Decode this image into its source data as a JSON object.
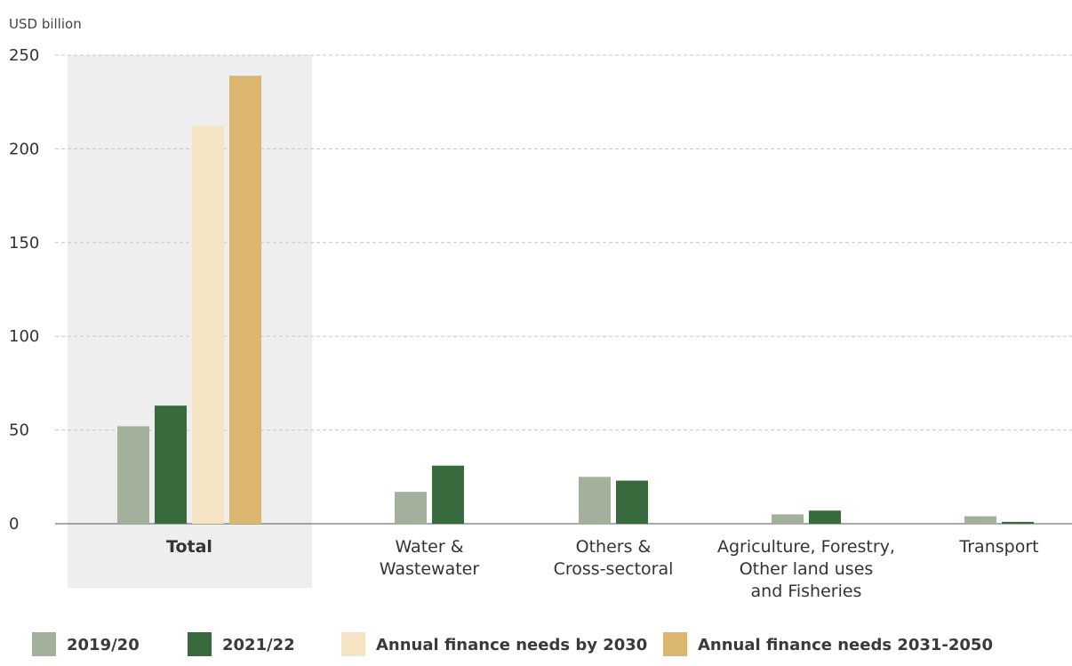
{
  "chart_data": {
    "type": "bar",
    "ylabel": "USD billion",
    "ylim": [
      0,
      250
    ],
    "yticks": [
      0,
      50,
      100,
      150,
      200,
      250
    ],
    "grid": true,
    "legend_position": "bottom",
    "categories": [
      {
        "lines": [
          "Total"
        ],
        "bold": true,
        "highlight": true
      },
      {
        "lines": [
          "Water &",
          "Wastewater"
        ]
      },
      {
        "lines": [
          "Others &",
          "Cross-sectoral"
        ]
      },
      {
        "lines": [
          "Agriculture, Forestry,",
          "Other land uses",
          "and Fisheries"
        ]
      },
      {
        "lines": [
          "Transport"
        ]
      }
    ],
    "series": [
      {
        "name": "2019/20",
        "color": "#a3b09b",
        "values": [
          52,
          17,
          25,
          5,
          4
        ]
      },
      {
        "name": "2021/22",
        "color": "#376b3e",
        "values": [
          63,
          31,
          23,
          7,
          1
        ]
      },
      {
        "name": "Annual finance needs by 2030",
        "color": "#f5e4c4",
        "values": [
          212,
          null,
          null,
          null,
          null
        ]
      },
      {
        "name": "Annual finance needs 2031-2050",
        "color": "#dbb66f",
        "values": [
          239,
          null,
          null,
          null,
          null
        ]
      }
    ],
    "colors": {
      "grid": "#c8c8c8",
      "axis": "#555555",
      "highlight": "#eeeeee"
    }
  }
}
